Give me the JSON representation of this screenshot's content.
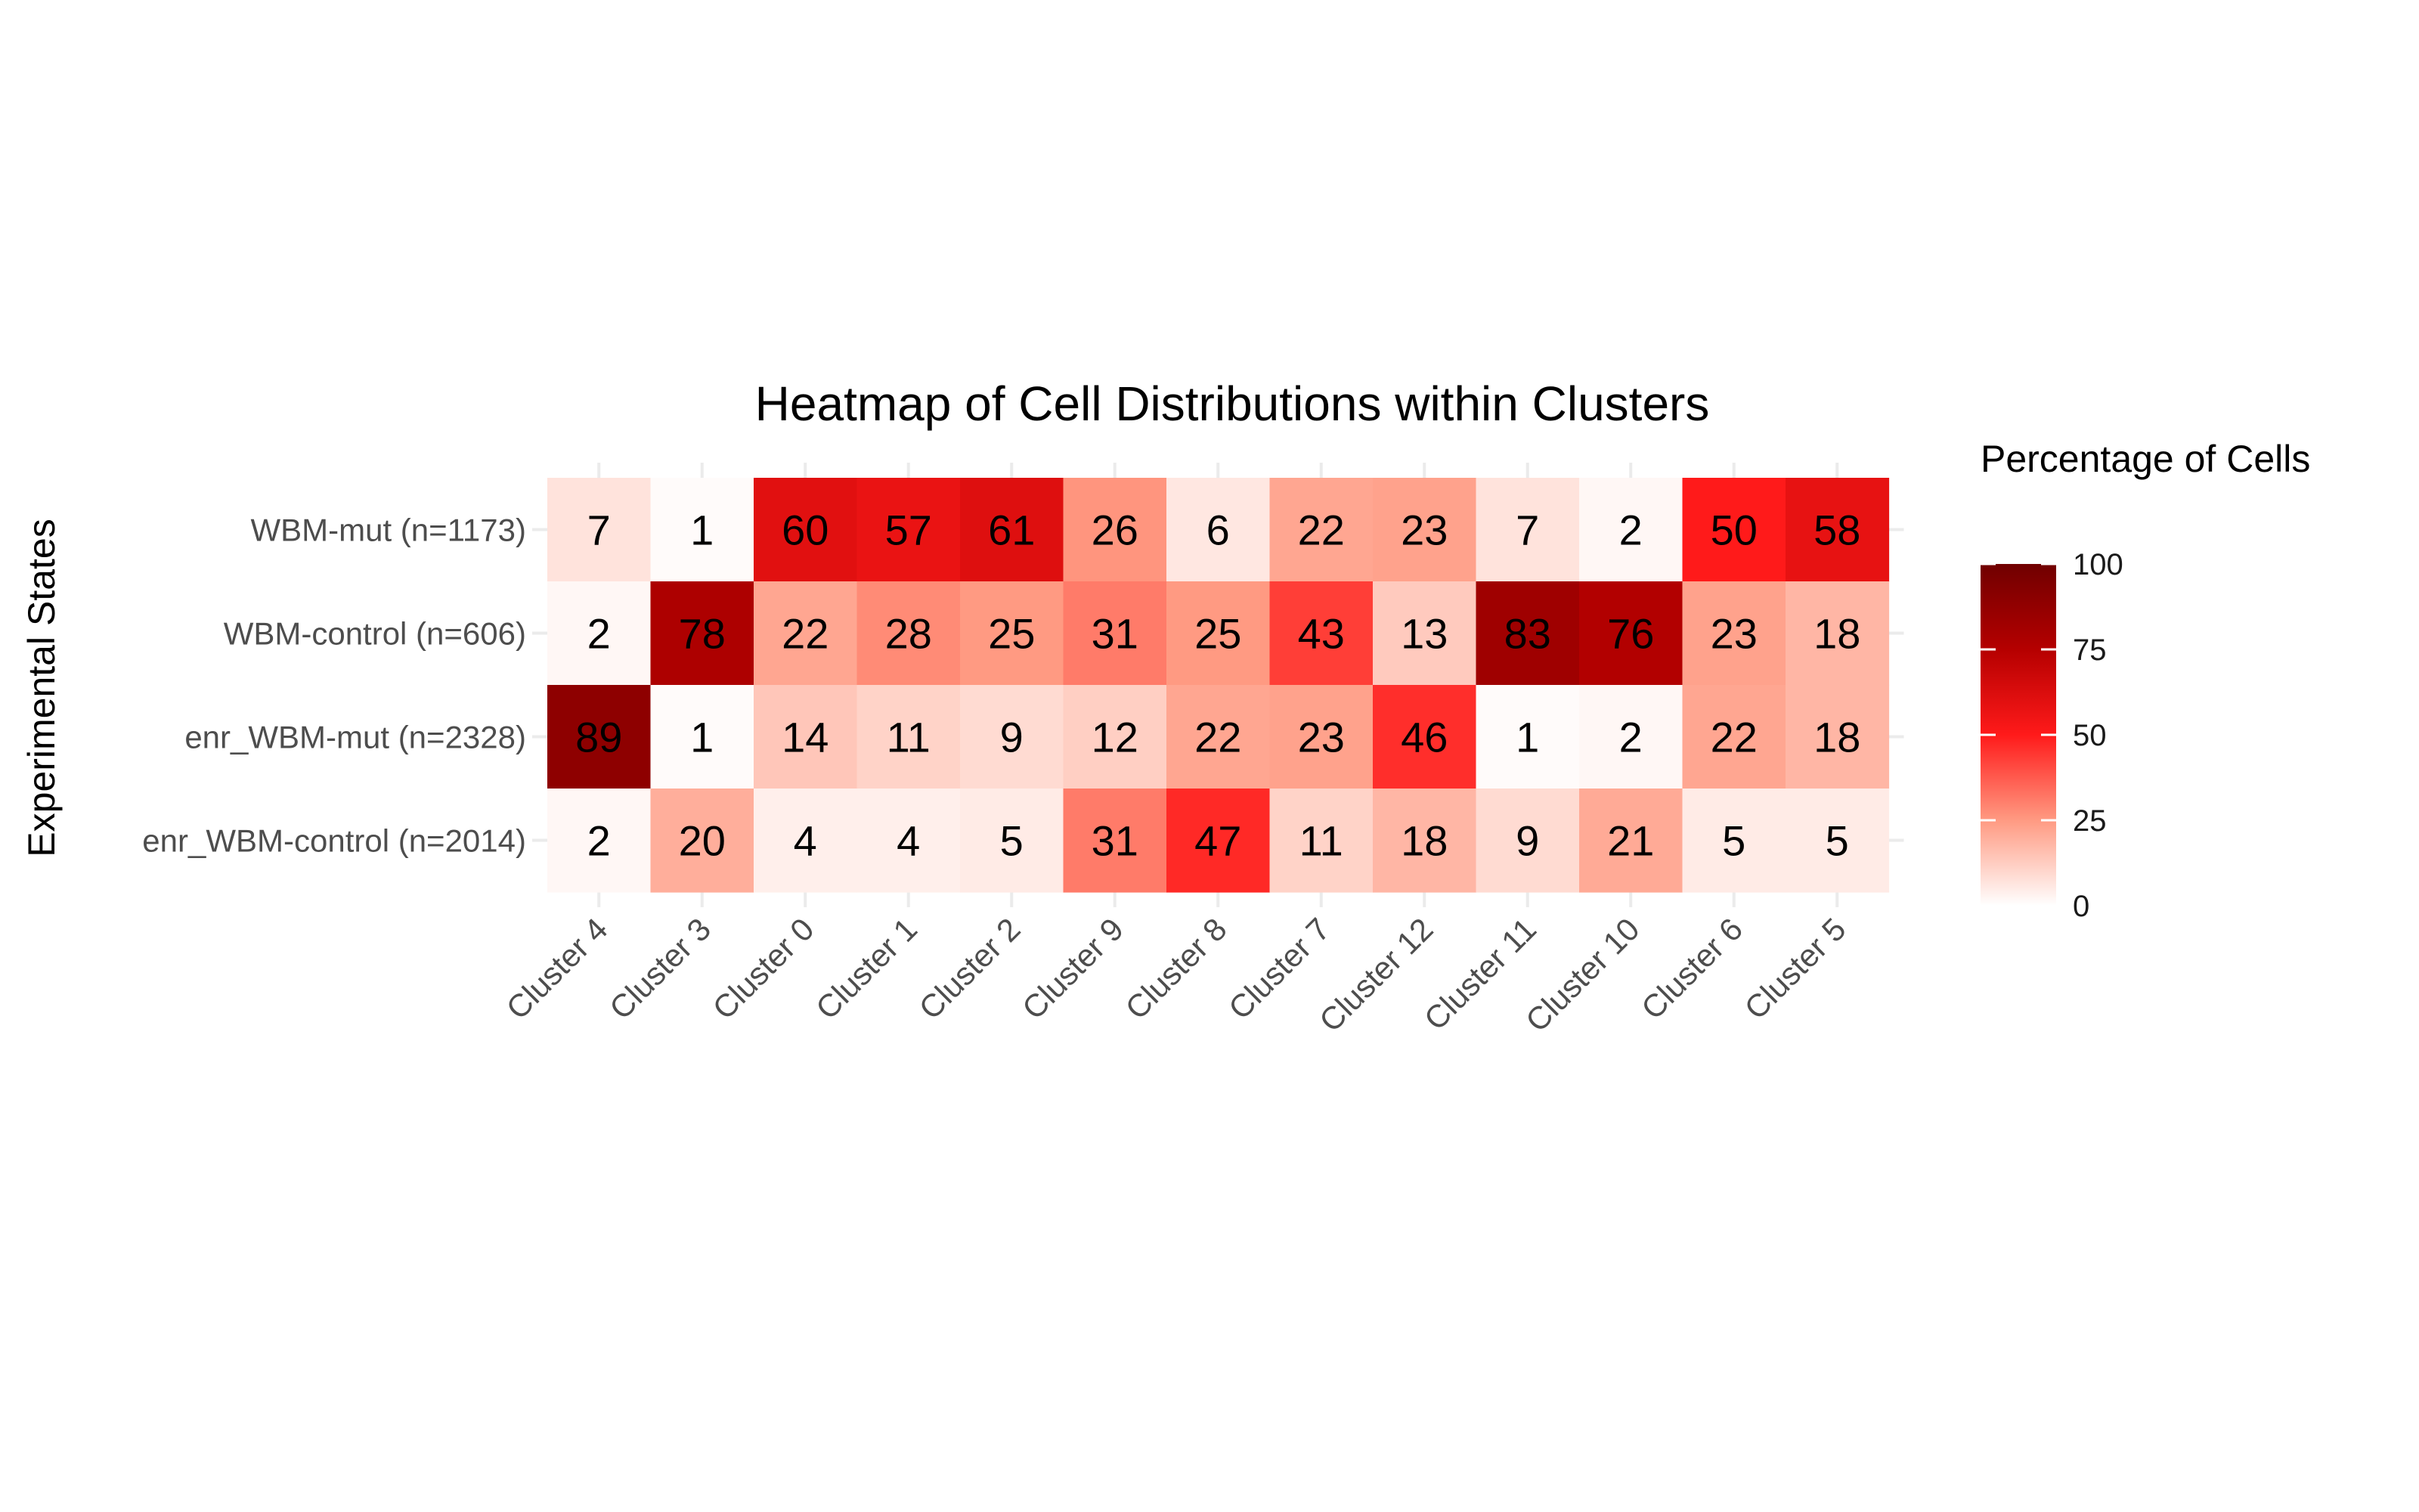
{
  "chart_data": {
    "type": "heatmap",
    "title": "Heatmap of Cell Distributions within Clusters",
    "xlabel": "",
    "ylabel": "Experimental States",
    "x_categories": [
      "Cluster 4",
      "Cluster 3",
      "Cluster 0",
      "Cluster 1",
      "Cluster 2",
      "Cluster 9",
      "Cluster 8",
      "Cluster 7",
      "Cluster 12",
      "Cluster 11",
      "Cluster 10",
      "Cluster 6",
      "Cluster 5"
    ],
    "y_categories": [
      "WBM-mut (n=1173)",
      "WBM-control (n=606)",
      "enr_WBM-mut (n=2328)",
      "enr_WBM-control (n=2014)"
    ],
    "values": [
      [
        7,
        1,
        60,
        57,
        61,
        26,
        6,
        22,
        23,
        7,
        2,
        50,
        58
      ],
      [
        2,
        78,
        22,
        28,
        25,
        31,
        25,
        43,
        13,
        83,
        76,
        23,
        18
      ],
      [
        89,
        1,
        14,
        11,
        9,
        12,
        22,
        23,
        46,
        1,
        2,
        22,
        18
      ],
      [
        2,
        20,
        4,
        4,
        5,
        31,
        47,
        11,
        18,
        9,
        21,
        5,
        5
      ]
    ],
    "legend": {
      "title": "Percentage of Cells",
      "range": [
        0,
        100
      ],
      "ticks": [
        "0",
        "25",
        "50",
        "75",
        "100"
      ],
      "colors": [
        "#ffffff",
        "#ff9a82",
        "#ff1a1a",
        "#b50000",
        "#700000"
      ],
      "placement": "right"
    },
    "grid": true
  }
}
